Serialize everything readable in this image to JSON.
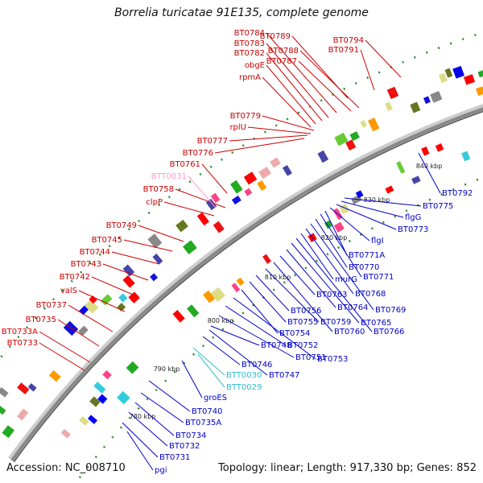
{
  "title": "Borrelia turicatae 91E135, complete genome",
  "footer": {
    "accession": "Accession: NC_008710",
    "topology": "Topology: linear; Length: 917,330 bp; Genes: 852"
  },
  "colors": {
    "forward_label": "#cc0000",
    "reverse_label": "#0000cc",
    "rna_forward_label": "#ff99cc",
    "rna_reverse_label": "#33bbcc",
    "backbone": "#888888"
  },
  "kbp_marks": [
    "780 kbp",
    "790 kbp",
    "800 kbp",
    "810 kbp",
    "820 kbp",
    "830 kbp",
    "840 kbp"
  ],
  "forward_genes": [
    "BT0733",
    "BT0733A",
    "BT0735",
    "BT0737",
    "valS",
    "BT0742",
    "BT0743",
    "BT0744",
    "BT0745",
    "BT0749",
    "clpP",
    "BT0758",
    "BTT0031",
    "BT0761",
    "BT0776",
    "BT0777",
    "rplU",
    "BT0779",
    "rpmA",
    "obgE",
    "BT0782",
    "BT0783",
    "BT0784",
    "BT0787",
    "BT0788",
    "BT0789",
    "BT0791",
    "BT0794"
  ],
  "reverse_genes": [
    "pgi",
    "BT0731",
    "BT0732",
    "BT0734",
    "BT0735A",
    "BT0740",
    "groES",
    "BTT0029",
    "BTT0030",
    "BT0746",
    "BT0747",
    "BT0748",
    "BT0751",
    "BT0752",
    "BT0753",
    "BT0754",
    "BT0755",
    "BT0756",
    "BT0759",
    "BT0760",
    "BT0763",
    "BT0764",
    "BT0765",
    "BT0766",
    "murG",
    "BT0768",
    "BT0769",
    "BT0770",
    "BT0771",
    "BT0771A",
    "flgI",
    "BT0773",
    "flgG",
    "BT0775",
    "BT0792"
  ]
}
